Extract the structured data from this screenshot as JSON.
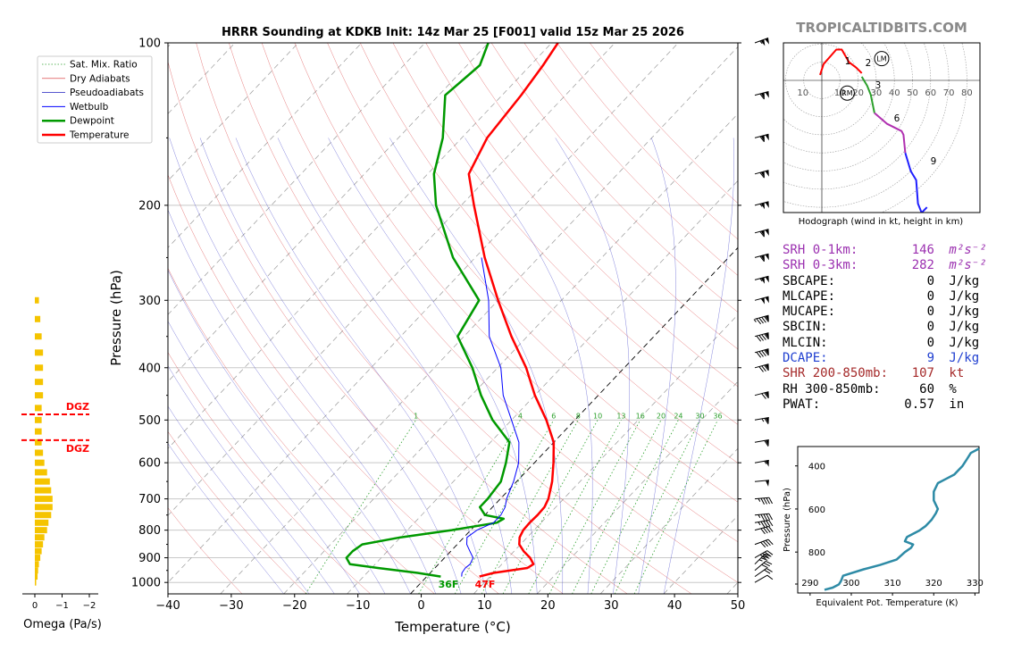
{
  "title": "HRRR Sounding at KDKB Init: 14z Mar 25 [F001] valid 15z Mar 25 2026",
  "watermark": "TROPICALTIDBITS.COM",
  "legend": [
    {
      "label": "Sat. Mix. Ratio",
      "color": "#2ca02c",
      "style": "dotted"
    },
    {
      "label": "Dry Adiabats",
      "color": "#d62728",
      "style": "thin"
    },
    {
      "label": "Pseudoadiabats",
      "color": "#1f1fbf",
      "style": "thin"
    },
    {
      "label": "Wetbulb",
      "color": "#0000ff",
      "style": "solid"
    },
    {
      "label": "Dewpoint",
      "color": "#009900",
      "style": "bold"
    },
    {
      "label": "Temperature",
      "color": "#ff0000",
      "style": "bold"
    }
  ],
  "omega": {
    "xlabel": "Omega (Pa/s)",
    "ticks": [
      "0",
      "−1",
      "−2"
    ],
    "dgz_label": "DGZ"
  },
  "hodograph": {
    "caption": "Hodograph (wind in kt, height in km)",
    "ring_labels": [
      "10",
      "10",
      "20",
      "30",
      "40",
      "50",
      "60",
      "70",
      "80"
    ],
    "height_labels": [
      "1",
      "2",
      "3",
      "6",
      "9"
    ],
    "lm_label": "LM",
    "rm_label": "RM"
  },
  "params": [
    {
      "label": "SRH 0-1km:",
      "value": "146",
      "unit": "m²s⁻²",
      "color": "#9b30b0"
    },
    {
      "label": "SRH 0-3km:",
      "value": "282",
      "unit": "m²s⁻²",
      "color": "#9b30b0"
    },
    {
      "label": "SBCAPE:",
      "value": "0",
      "unit": "J/kg",
      "color": "#000000"
    },
    {
      "label": "MLCAPE:",
      "value": "0",
      "unit": "J/kg",
      "color": "#000000"
    },
    {
      "label": "MUCAPE:",
      "value": "0",
      "unit": "J/kg",
      "color": "#000000"
    },
    {
      "label": "SBCIN:",
      "value": "0",
      "unit": "J/kg",
      "color": "#000000"
    },
    {
      "label": "MLCIN:",
      "value": "0",
      "unit": "J/kg",
      "color": "#000000"
    },
    {
      "label": "DCAPE:",
      "value": "9",
      "unit": "J/kg",
      "color": "#1f3fd0"
    },
    {
      "label": "SHR 200-850mb:",
      "value": "107",
      "unit": "kt",
      "color": "#a52a2a"
    },
    {
      "label": "RH 300-850mb:",
      "value": "60",
      "unit": "%",
      "color": "#000000"
    },
    {
      "label": "PWAT:",
      "value": "0.57",
      "unit": "in",
      "color": "#000000"
    }
  ],
  "theta_e_chart": {
    "ylabel": "Pressure (hPa)",
    "xlabel": "Equivalent Pot. Temperature (K)",
    "xticks": [
      "290",
      "300",
      "310",
      "320",
      "330"
    ],
    "yticks": [
      "400",
      "600",
      "800"
    ]
  },
  "chart_data": [
    {
      "type": "line",
      "name": "skew-t",
      "xlabel": "Temperature (°C)",
      "ylabel": "Pressure (hPa)",
      "xlim": [
        -40,
        50
      ],
      "ylim": [
        1050,
        100
      ],
      "y_scale": "log",
      "x_ticks": [
        -40,
        -30,
        -20,
        -10,
        0,
        10,
        20,
        30,
        40,
        50
      ],
      "y_ticks": [
        100,
        200,
        300,
        400,
        500,
        600,
        700,
        800,
        900,
        1000
      ],
      "mix_ratio_labels": [
        "1",
        "4",
        "6",
        "8",
        "10",
        "13",
        "16",
        "20",
        "24",
        "30",
        "36"
      ],
      "surface_labels": {
        "temperature": "47F",
        "dewpoint": "36F"
      },
      "series": [
        {
          "name": "Temperature",
          "color": "#ff0000",
          "points": [
            [
              975,
              8.3
            ],
            [
              960,
              10
            ],
            [
              940,
              14.6
            ],
            [
              925,
              15
            ],
            [
              900,
              13.5
            ],
            [
              875,
              11.5
            ],
            [
              850,
              9.8
            ],
            [
              825,
              8.8
            ],
            [
              800,
              8.3
            ],
            [
              775,
              8.2
            ],
            [
              750,
              8.3
            ],
            [
              725,
              8.2
            ],
            [
              700,
              7.6
            ],
            [
              650,
              5.6
            ],
            [
              600,
              3
            ],
            [
              550,
              0
            ],
            [
              500,
              -4.5
            ],
            [
              450,
              -10
            ],
            [
              400,
              -15.5
            ],
            [
              350,
              -22.5
            ],
            [
              300,
              -30
            ],
            [
              250,
              -38.5
            ],
            [
              200,
              -48
            ],
            [
              175,
              -53.5
            ],
            [
              150,
              -56
            ],
            [
              125,
              -57
            ],
            [
              110,
              -58
            ],
            [
              100,
              -59
            ]
          ]
        },
        {
          "name": "Dewpoint",
          "color": "#009900",
          "points": [
            [
              975,
              2.2
            ],
            [
              960,
              -2
            ],
            [
              940,
              -9
            ],
            [
              925,
              -14
            ],
            [
              900,
              -15.5
            ],
            [
              875,
              -15.5
            ],
            [
              850,
              -15
            ],
            [
              825,
              -10
            ],
            [
              800,
              -3
            ],
            [
              775,
              3
            ],
            [
              762,
              3.5
            ],
            [
              750,
              0
            ],
            [
              725,
              -2
            ],
            [
              700,
              -2
            ],
            [
              650,
              -2.5
            ],
            [
              600,
              -4.5
            ],
            [
              550,
              -7
            ],
            [
              500,
              -13
            ],
            [
              450,
              -18.5
            ],
            [
              400,
              -24
            ],
            [
              350,
              -31
            ],
            [
              300,
              -33
            ],
            [
              250,
              -43.5
            ],
            [
              200,
              -54
            ],
            [
              175,
              -59
            ],
            [
              150,
              -63
            ],
            [
              125,
              -69
            ],
            [
              110,
              -68
            ],
            [
              100,
              -70
            ]
          ]
        },
        {
          "name": "Wetbulb",
          "color": "#0000ff",
          "points": [
            [
              975,
              5.5
            ],
            [
              960,
              5
            ],
            [
              940,
              4.8
            ],
            [
              925,
              5
            ],
            [
              900,
              4.5
            ],
            [
              875,
              3
            ],
            [
              850,
              1.5
            ],
            [
              825,
              0.5
            ],
            [
              800,
              1
            ],
            [
              775,
              2.5
            ],
            [
              750,
              2.5
            ],
            [
              725,
              2
            ],
            [
              700,
              1
            ],
            [
              650,
              -0.5
            ],
            [
              600,
              -2.5
            ],
            [
              550,
              -5.5
            ],
            [
              500,
              -10
            ],
            [
              450,
              -15
            ],
            [
              400,
              -19.5
            ],
            [
              350,
              -26
            ],
            [
              300,
              -31.5
            ],
            [
              250,
              -39
            ]
          ]
        }
      ]
    },
    {
      "type": "line",
      "name": "theta-e",
      "xlabel": "Equivalent Pot. Temperature (K)",
      "ylabel": "Pressure (hPa)",
      "xlim": [
        287,
        331
      ],
      "ylim": [
        990,
        310
      ],
      "series": [
        {
          "name": "theta-e",
          "color": "#2e8ba6",
          "points": [
            [
              975,
              293.5
            ],
            [
              965,
              295.5
            ],
            [
              950,
              297
            ],
            [
              935,
              297.5
            ],
            [
              910,
              298
            ],
            [
              880,
              303
            ],
            [
              860,
              307
            ],
            [
              835,
              311
            ],
            [
              800,
              313
            ],
            [
              780,
              314.5
            ],
            [
              765,
              315
            ],
            [
              750,
              313
            ],
            [
              730,
              313.5
            ],
            [
              700,
              316.5
            ],
            [
              680,
              318
            ],
            [
              650,
              319.5
            ],
            [
              620,
              320.5
            ],
            [
              600,
              321
            ],
            [
              560,
              320
            ],
            [
              520,
              320
            ],
            [
              480,
              321
            ],
            [
              460,
              323
            ],
            [
              440,
              325
            ],
            [
              420,
              326
            ],
            [
              400,
              327
            ],
            [
              370,
              328
            ],
            [
              340,
              329
            ],
            [
              320,
              331
            ]
          ]
        }
      ]
    },
    {
      "type": "line",
      "name": "hodograph",
      "rings_kt": [
        10,
        20,
        30,
        40,
        50,
        60,
        70,
        80
      ],
      "series": [
        {
          "name": "0-3km",
          "color": "#ff0000",
          "points_uv": [
            [
              -1,
              3
            ],
            [
              1,
              9
            ],
            [
              8,
              17
            ],
            [
              11,
              17
            ],
            [
              15,
              10
            ],
            [
              19,
              7
            ],
            [
              22,
              4
            ]
          ]
        },
        {
          "name": "3-6km",
          "color": "#2ca02c",
          "points_uv": [
            [
              22,
              2
            ],
            [
              25,
              -3
            ],
            [
              27,
              -8
            ],
            [
              29,
              -18
            ]
          ]
        },
        {
          "name": "6-9km",
          "color": "#b030b0",
          "points_uv": [
            [
              29,
              -18
            ],
            [
              36,
              -24
            ],
            [
              44,
              -28
            ],
            [
              45,
              -30
            ],
            [
              46,
              -40
            ]
          ]
        },
        {
          "name": "9-12km",
          "color": "#1f1fff",
          "points_uv": [
            [
              46,
              -40
            ],
            [
              49,
              -50
            ],
            [
              52,
              -55
            ],
            [
              53,
              -68
            ],
            [
              55,
              -73
            ],
            [
              58,
              -70
            ]
          ]
        }
      ],
      "storm_motion": {
        "LM": [
          33,
          12
        ],
        "RM": [
          14,
          -7
        ]
      }
    },
    {
      "type": "bar",
      "name": "omega",
      "xlim": [
        0.4,
        -2.2
      ],
      "levels_hpa": [
        1000,
        975,
        950,
        925,
        900,
        875,
        850,
        825,
        800,
        775,
        750,
        725,
        700,
        675,
        650,
        625,
        600,
        575,
        550,
        525,
        500,
        475,
        450,
        425,
        400,
        375,
        350,
        325,
        300
      ],
      "values": [
        -0.05,
        -0.1,
        -0.12,
        -0.15,
        -0.2,
        -0.25,
        -0.3,
        -0.35,
        -0.45,
        -0.5,
        -0.6,
        -0.65,
        -0.65,
        -0.6,
        -0.55,
        -0.45,
        -0.35,
        -0.3,
        -0.25,
        -0.25,
        -0.25,
        -0.25,
        -0.3,
        -0.3,
        -0.3,
        -0.3,
        -0.25,
        -0.2,
        -0.15
      ],
      "dgz_hpa": [
        488,
        545
      ]
    }
  ],
  "wind_barbs": [
    {
      "p": 1000,
      "dir": 240,
      "kt": 12
    },
    {
      "p": 975,
      "dir": 235,
      "kt": 20
    },
    {
      "p": 950,
      "dir": 230,
      "kt": 30
    },
    {
      "p": 925,
      "dir": 225,
      "kt": 35
    },
    {
      "p": 900,
      "dir": 240,
      "kt": 40
    },
    {
      "p": 850,
      "dir": 250,
      "kt": 42
    },
    {
      "p": 800,
      "dir": 255,
      "kt": 40
    },
    {
      "p": 775,
      "dir": 260,
      "kt": 45
    },
    {
      "p": 750,
      "dir": 265,
      "kt": 45
    },
    {
      "p": 700,
      "dir": 265,
      "kt": 45
    },
    {
      "p": 650,
      "dir": 265,
      "kt": 50
    },
    {
      "p": 600,
      "dir": 260,
      "kt": 55
    },
    {
      "p": 550,
      "dir": 260,
      "kt": 60
    },
    {
      "p": 500,
      "dir": 260,
      "kt": 65
    },
    {
      "p": 450,
      "dir": 255,
      "kt": 70
    },
    {
      "p": 400,
      "dir": 255,
      "kt": 80
    },
    {
      "p": 375,
      "dir": 255,
      "kt": 90
    },
    {
      "p": 350,
      "dir": 255,
      "kt": 90
    },
    {
      "p": 325,
      "dir": 255,
      "kt": 95
    },
    {
      "p": 300,
      "dir": 255,
      "kt": 100
    },
    {
      "p": 275,
      "dir": 255,
      "kt": 105
    },
    {
      "p": 250,
      "dir": 255,
      "kt": 110
    },
    {
      "p": 225,
      "dir": 255,
      "kt": 110
    },
    {
      "p": 200,
      "dir": 255,
      "kt": 105
    },
    {
      "p": 175,
      "dir": 255,
      "kt": 110
    },
    {
      "p": 150,
      "dir": 255,
      "kt": 110
    },
    {
      "p": 125,
      "dir": 255,
      "kt": 110
    },
    {
      "p": 100,
      "dir": 250,
      "kt": 105
    }
  ]
}
